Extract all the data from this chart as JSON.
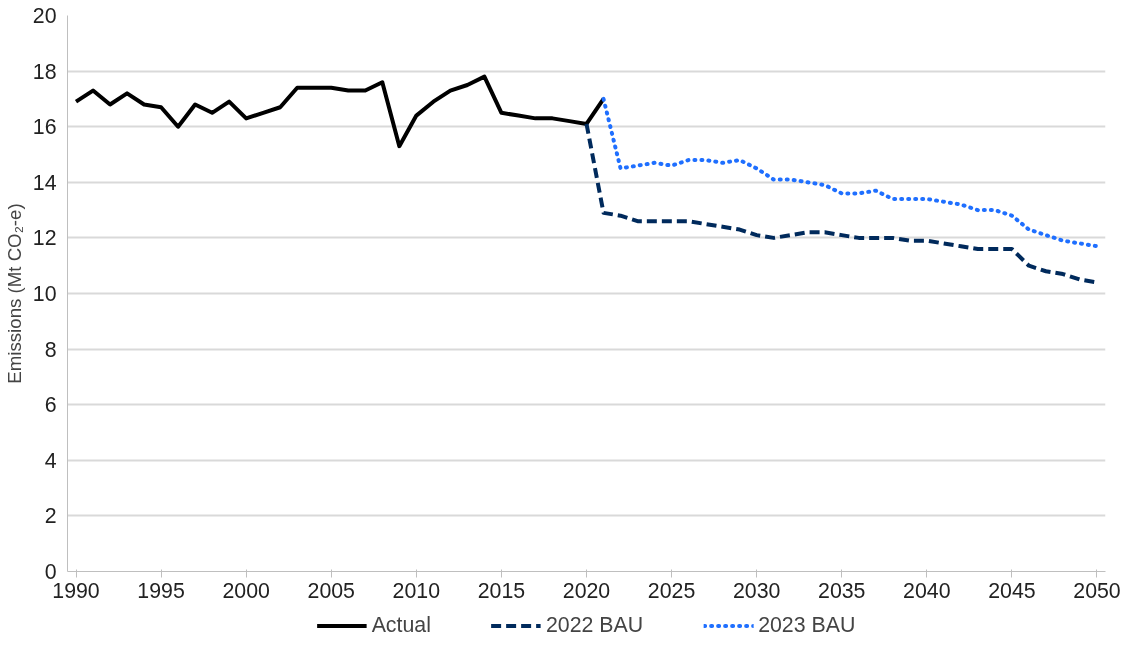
{
  "chart_data": {
    "type": "line",
    "ylabel": "Emissions (Mt CO₂-e)",
    "xlim": [
      1989.5,
      2050.5
    ],
    "xticks": [
      1990,
      1995,
      2000,
      2005,
      2010,
      2015,
      2020,
      2025,
      2030,
      2035,
      2040,
      2045,
      2050
    ],
    "ylim": [
      0,
      20
    ],
    "yticks": [
      0,
      2,
      4,
      6,
      8,
      10,
      12,
      14,
      16,
      18,
      20
    ],
    "grid": "y",
    "legend": "bottom",
    "series": [
      {
        "name": "Actual",
        "color": "#000000",
        "line_style": "solid",
        "x": [
          1990,
          1991,
          1992,
          1993,
          1994,
          1995,
          1996,
          1997,
          1998,
          1999,
          2000,
          2001,
          2002,
          2003,
          2004,
          2005,
          2006,
          2007,
          2008,
          2009,
          2010,
          2011,
          2012,
          2013,
          2014,
          2015,
          2016,
          2017,
          2018,
          2019,
          2020,
          2021
        ],
        "values": [
          16.9,
          17.3,
          16.8,
          17.2,
          16.8,
          16.7,
          16.0,
          16.8,
          16.5,
          16.9,
          16.3,
          16.5,
          16.7,
          17.4,
          17.4,
          17.4,
          17.3,
          17.3,
          17.6,
          15.3,
          16.4,
          16.9,
          17.3,
          17.5,
          17.8,
          16.5,
          16.4,
          16.3,
          16.3,
          16.2,
          16.1,
          17.0
        ]
      },
      {
        "name": "2022 BAU",
        "color": "#002a5c",
        "line_style": "dashed",
        "x": [
          2020,
          2021,
          2022,
          2023,
          2024,
          2025,
          2026,
          2027,
          2028,
          2029,
          2030,
          2031,
          2032,
          2033,
          2034,
          2035,
          2036,
          2037,
          2038,
          2039,
          2040,
          2041,
          2042,
          2043,
          2044,
          2045,
          2046,
          2047,
          2048,
          2049,
          2050
        ],
        "values": [
          16.1,
          12.9,
          12.8,
          12.6,
          12.6,
          12.6,
          12.6,
          12.5,
          12.4,
          12.3,
          12.1,
          12.0,
          12.1,
          12.2,
          12.2,
          12.1,
          12.0,
          12.0,
          12.0,
          11.9,
          11.9,
          11.8,
          11.7,
          11.6,
          11.6,
          11.6,
          11.0,
          10.8,
          10.7,
          10.5,
          10.4
        ]
      },
      {
        "name": "2023 BAU",
        "color": "#1f6fff",
        "line_style": "dotted",
        "x": [
          2021,
          2022,
          2023,
          2024,
          2025,
          2026,
          2027,
          2028,
          2029,
          2030,
          2031,
          2032,
          2033,
          2034,
          2035,
          2036,
          2037,
          2038,
          2039,
          2040,
          2041,
          2042,
          2043,
          2044,
          2045,
          2046,
          2047,
          2048,
          2049,
          2050
        ],
        "values": [
          17.0,
          14.5,
          14.6,
          14.7,
          14.6,
          14.8,
          14.8,
          14.7,
          14.8,
          14.5,
          14.1,
          14.1,
          14.0,
          13.9,
          13.6,
          13.6,
          13.7,
          13.4,
          13.4,
          13.4,
          13.3,
          13.2,
          13.0,
          13.0,
          12.8,
          12.3,
          12.1,
          11.9,
          11.8,
          11.7
        ]
      }
    ]
  }
}
